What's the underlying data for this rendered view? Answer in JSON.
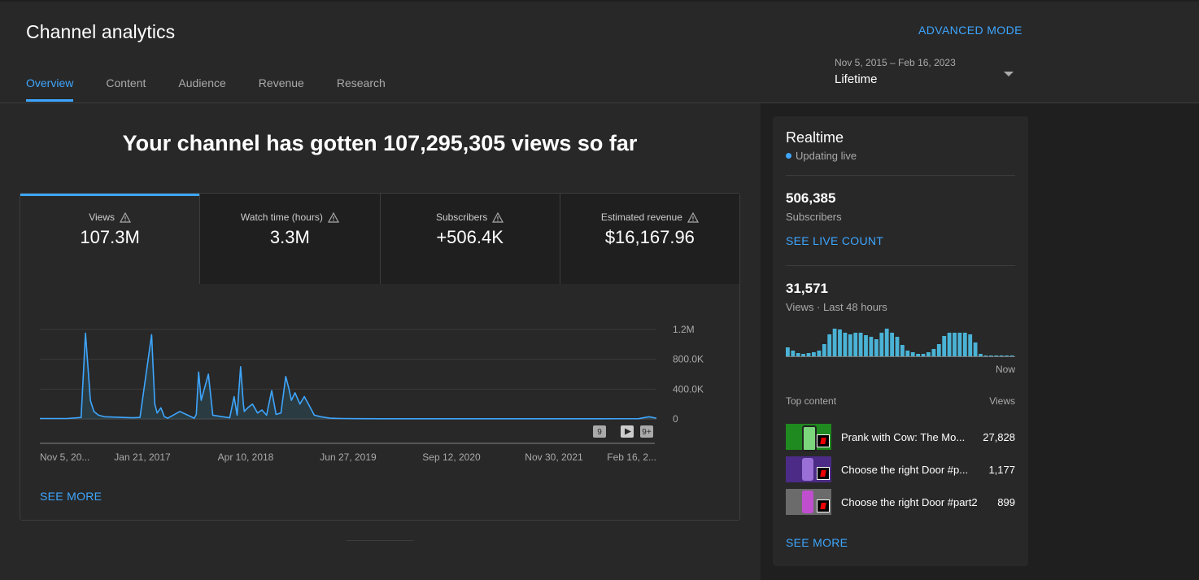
{
  "header": {
    "title": "Channel analytics",
    "advanced_mode": "ADVANCED MODE",
    "tabs": [
      {
        "label": "Overview",
        "active": true
      },
      {
        "label": "Content",
        "active": false
      },
      {
        "label": "Audience",
        "active": false
      },
      {
        "label": "Revenue",
        "active": false
      },
      {
        "label": "Research",
        "active": false
      }
    ],
    "date_range": "Nov 5, 2015 – Feb 16, 2023",
    "date_label": "Lifetime"
  },
  "overview": {
    "headline": "Your channel has gotten 107,295,305 views so far",
    "metrics": [
      {
        "label": "Views",
        "value": "107.3M",
        "active": true
      },
      {
        "label": "Watch time (hours)",
        "value": "3.3M",
        "active": false
      },
      {
        "label": "Subscribers",
        "value": "+506.4K",
        "active": false
      },
      {
        "label": "Estimated revenue",
        "value": "$16,167.96",
        "active": false
      }
    ],
    "see_more": "SEE MORE",
    "chart_badges": [
      "9",
      "9+"
    ]
  },
  "chart_data": {
    "type": "area",
    "title": "",
    "xlabel": "",
    "ylabel": "",
    "ylim": [
      0,
      1200000
    ],
    "y_ticks": [
      {
        "value": 0,
        "label": "0"
      },
      {
        "value": 400000,
        "label": "400.0K"
      },
      {
        "value": 800000,
        "label": "800.0K"
      },
      {
        "value": 1200000,
        "label": "1.2M"
      }
    ],
    "x_tick_labels": [
      "Nov 5, 20...",
      "Jan 21, 2017",
      "Apr 10, 2018",
      "Jun 27, 2019",
      "Sep 12, 2020",
      "Nov 30, 2021",
      "Feb 16, 2..."
    ],
    "x_range": [
      "2015-11-05",
      "2023-02-16"
    ],
    "series": [
      {
        "x": [
          "2015-11-05",
          "2016-03-01",
          "2016-05-01",
          "2016-05-20",
          "2016-06-10",
          "2016-06-25",
          "2016-07-15",
          "2016-08-10",
          "2016-09-15",
          "2016-11-01",
          "2016-12-10",
          "2017-01-10",
          "2017-03-01",
          "2017-03-15",
          "2017-03-25",
          "2017-04-10",
          "2017-04-25",
          "2017-05-10",
          "2017-07-01",
          "2017-09-01",
          "2017-09-10",
          "2017-09-20",
          "2017-10-01",
          "2017-11-01",
          "2017-11-20",
          "2018-01-01",
          "2018-02-01",
          "2018-02-20",
          "2018-03-05",
          "2018-03-20",
          "2018-04-01",
          "2018-04-05",
          "2018-04-20",
          "2018-05-10",
          "2018-06-01",
          "2018-06-20",
          "2018-07-10",
          "2018-08-01",
          "2018-08-20",
          "2018-09-10",
          "2018-10-01",
          "2018-10-15",
          "2018-10-25",
          "2018-11-10",
          "2018-12-01",
          "2018-12-20",
          "2019-01-10",
          "2019-02-01",
          "2019-03-01",
          "2019-03-20",
          "2019-04-10",
          "2019-05-01",
          "2019-06-01",
          "2019-08-01",
          "2019-12-01",
          "2020-06-01",
          "2021-01-01",
          "2021-06-01",
          "2022-01-01",
          "2022-06-01",
          "2022-12-01",
          "2023-01-15",
          "2023-02-16"
        ],
        "y": [
          5000,
          5000,
          20000,
          1150000,
          250000,
          100000,
          50000,
          30000,
          25000,
          20000,
          15000,
          20000,
          1130000,
          200000,
          80000,
          150000,
          30000,
          10000,
          100000,
          10000,
          60000,
          630000,
          250000,
          600000,
          50000,
          30000,
          15000,
          300000,
          50000,
          700000,
          200000,
          100000,
          150000,
          200000,
          80000,
          120000,
          50000,
          380000,
          60000,
          80000,
          570000,
          400000,
          250000,
          350000,
          200000,
          300000,
          180000,
          50000,
          30000,
          20000,
          10000,
          8000,
          5000,
          3000,
          2000,
          2000,
          2000,
          2000,
          2000,
          2000,
          3000,
          30000,
          10000
        ]
      }
    ]
  },
  "realtime": {
    "title": "Realtime",
    "live": "Updating live",
    "subscribers_value": "506,385",
    "subscribers_label": "Subscribers",
    "live_count": "SEE LIVE COUNT",
    "views_value": "31,571",
    "views_label": "Views · Last 48 hours",
    "bars": [
      12,
      8,
      5,
      4,
      5,
      6,
      8,
      16,
      28,
      35,
      34,
      30,
      28,
      30,
      30,
      27,
      25,
      22,
      30,
      35,
      30,
      25,
      15,
      8,
      6,
      4,
      4,
      6,
      10,
      16,
      26,
      30,
      30,
      30,
      30,
      28,
      18,
      4,
      2,
      2,
      2,
      2,
      2,
      2
    ],
    "now_label": "Now",
    "top_content_label": "Top content",
    "views_col_label": "Views",
    "top_content": [
      {
        "title": "Prank with Cow: The Mo...",
        "views": "27,828"
      },
      {
        "title": "Choose the right Door #p...",
        "views": "1,177"
      },
      {
        "title": "Choose the right Door #part2",
        "views": "899"
      }
    ],
    "see_more": "SEE MORE"
  }
}
